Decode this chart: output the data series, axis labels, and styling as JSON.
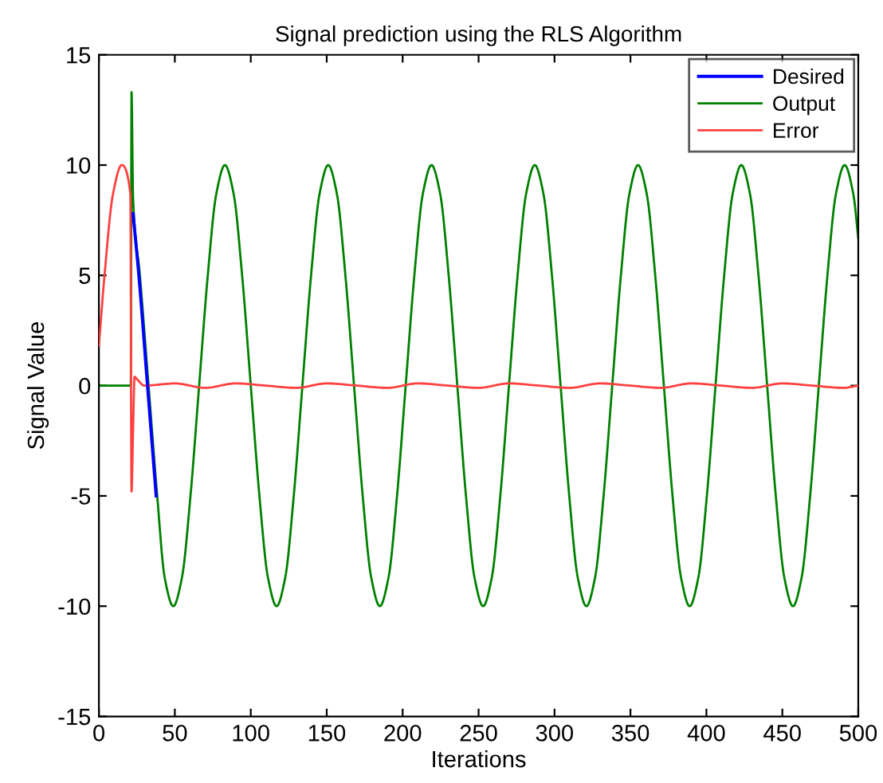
{
  "chart_data": {
    "type": "line",
    "title": "Signal prediction using the RLS Algorithm",
    "xlabel": "Iterations",
    "ylabel": "Signal Value",
    "xlim": [
      0,
      500
    ],
    "ylim": [
      -15,
      15
    ],
    "xticks": [
      0,
      50,
      100,
      150,
      200,
      250,
      300,
      350,
      400,
      450,
      500
    ],
    "yticks": [
      -15,
      -10,
      -5,
      0,
      5,
      10,
      15
    ],
    "grid": false,
    "legend": "top right",
    "line_style": "solid",
    "marker": "none",
    "series": [
      {
        "name": "Desired",
        "color": "#0000ff",
        "x": [
          22.5,
          26.3,
          32,
          37.7
        ],
        "values": [
          7.8,
          5,
          0,
          -5
        ]
      },
      {
        "name": "Output",
        "color": "#008000",
        "x": [
          0,
          21,
          21.5,
          22.5,
          27,
          32.7,
          38.4,
          43.3,
          49,
          54.7,
          60.3,
          66,
          71.7,
          77.3,
          83,
          88.7,
          94.3,
          100,
          105.7,
          111.3,
          117,
          122.7,
          128.3,
          134,
          139.7,
          145.3,
          151,
          156.7,
          162.3,
          168,
          173.7,
          179.3,
          185,
          190.7,
          196.3,
          202,
          207.7,
          213.3,
          219,
          224.7,
          230.3,
          236,
          241.7,
          247.3,
          253,
          258.7,
          264.3,
          270,
          275.7,
          281.3,
          287,
          292.7,
          298.3,
          304,
          309.7,
          315.3,
          321,
          326.7,
          332.3,
          338,
          343.7,
          349.3,
          355,
          360.7,
          366.3,
          372,
          377.7,
          383.3,
          389,
          394.7,
          400.3,
          406,
          411.7,
          417.3,
          423,
          428.7,
          434.3,
          440,
          445.7,
          451.3,
          457,
          462.7,
          468.3,
          474,
          479.7,
          485.3,
          491,
          496.7,
          500
        ],
        "values": [
          0,
          0,
          13.3,
          8.5,
          5,
          0,
          -5,
          -8.7,
          -10,
          -8.7,
          -5,
          0,
          5,
          8.7,
          10,
          8.7,
          5,
          0,
          -5,
          -8.7,
          -10,
          -8.7,
          -5,
          0,
          5,
          8.7,
          10,
          8.7,
          5,
          0,
          -5,
          -8.7,
          -10,
          -8.7,
          -5,
          0,
          5,
          8.7,
          10,
          8.7,
          5,
          0,
          -5,
          -8.7,
          -10,
          -8.7,
          -5,
          0,
          5,
          8.7,
          10,
          8.7,
          5,
          0,
          -5,
          -8.7,
          -10,
          -8.7,
          -5,
          0,
          5,
          8.7,
          10,
          8.7,
          5,
          0,
          -5,
          -8.7,
          -10,
          -8.7,
          -5,
          0,
          5,
          8.7,
          10,
          8.7,
          5,
          0,
          -5,
          -8.7,
          -10,
          -8.7,
          -5,
          0,
          5,
          8.7,
          10,
          8.7,
          6.7
        ]
      },
      {
        "name": "Error",
        "color": "#ff4040",
        "x": [
          0,
          3.7,
          9.3,
          15,
          20.7,
          21.5,
          22.5,
          23.5,
          25,
          30,
          50,
          70,
          90,
          110,
          130,
          150,
          170,
          190,
          210,
          230,
          250,
          270,
          290,
          310,
          330,
          350,
          370,
          390,
          410,
          430,
          450,
          470,
          490,
          500
        ],
        "values": [
          1.8,
          5,
          8.7,
          10,
          8.7,
          -4.8,
          -2,
          0.4,
          0.3,
          0,
          0.1,
          -0.1,
          0.1,
          0,
          -0.1,
          0.1,
          0,
          -0.1,
          0.1,
          0,
          -0.1,
          0.1,
          0,
          -0.1,
          0.1,
          0,
          -0.1,
          0.1,
          0,
          -0.1,
          0.1,
          0,
          -0.1,
          0
        ]
      }
    ]
  }
}
